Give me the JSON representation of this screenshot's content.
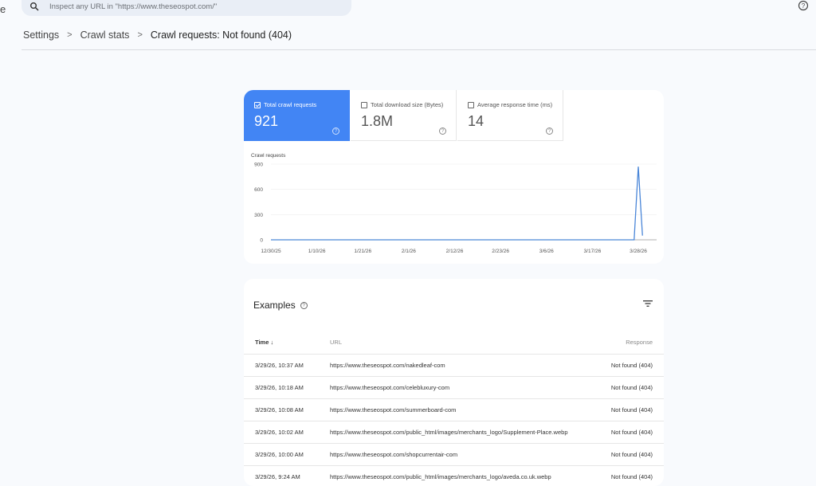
{
  "edge_char": "e",
  "search": {
    "placeholder": "Inspect any URL in \"https://www.theseospot.com/\""
  },
  "breadcrumb": [
    "Settings",
    "Crawl stats",
    "Crawl requests: Not found (404)"
  ],
  "metrics": [
    {
      "label": "Total crawl requests",
      "value": "921",
      "checked": true
    },
    {
      "label": "Total download size (Bytes)",
      "value": "1.8M",
      "checked": false
    },
    {
      "label": "Average response time (ms)",
      "value": "14",
      "checked": false
    }
  ],
  "colors": {
    "accent": "#4285f4",
    "line": "#4a86d8"
  },
  "chart_data": {
    "type": "line",
    "ylabel": "Crawl requests",
    "ylim": [
      0,
      900
    ],
    "yticks": [
      "0",
      "300",
      "600",
      "900"
    ],
    "xticks": [
      "12/30/25",
      "1/10/26",
      "1/21/26",
      "2/1/26",
      "2/12/26",
      "2/23/26",
      "3/6/26",
      "3/17/26",
      "3/28/26"
    ],
    "x": [
      "12/30/25",
      "3/27/26",
      "3/28/26",
      "3/29/26"
    ],
    "values": [
      0,
      0,
      870,
      50
    ],
    "grid": true
  },
  "examples": {
    "title": "Examples",
    "columns": [
      "Time",
      "URL",
      "Response"
    ],
    "rows": [
      [
        "3/29/26, 10:37 AM",
        "https://www.theseospot.com/nakedleaf-com",
        "Not found (404)"
      ],
      [
        "3/29/26, 10:18 AM",
        "https://www.theseospot.com/celebluxury-com",
        "Not found (404)"
      ],
      [
        "3/29/26, 10:08 AM",
        "https://www.theseospot.com/summerboard-com",
        "Not found (404)"
      ],
      [
        "3/29/26, 10:02 AM",
        "https://www.theseospot.com/public_html/images/merchants_logo/Supplement-Place.webp",
        "Not found (404)"
      ],
      [
        "3/29/26, 10:00 AM",
        "https://www.theseospot.com/shopcurrentair-com",
        "Not found (404)"
      ],
      [
        "3/29/26, 9:24 AM",
        "https://www.theseospot.com/public_html/images/merchants_logo/aveda.co.uk.webp",
        "Not found (404)"
      ]
    ]
  }
}
